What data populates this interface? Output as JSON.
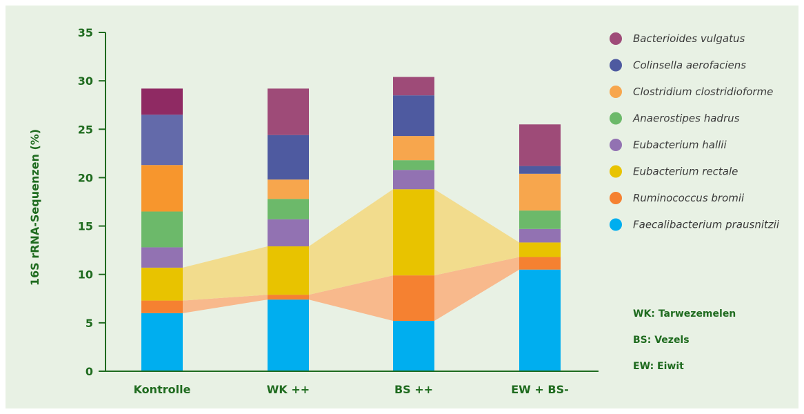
{
  "chart_data": {
    "type": "bar",
    "stacked": true,
    "ylabel": "16S rRNA-Sequenzen (%)",
    "xlabel": "",
    "ylim": [
      0,
      35
    ],
    "yticks": [
      0,
      5,
      10,
      15,
      20,
      25,
      30,
      35
    ],
    "grid": false,
    "legend_position": "right",
    "categories": [
      "Kontrolle",
      "WK ++",
      "BS ++",
      "EW + BS-"
    ],
    "series": [
      {
        "name": "Faecalibacterium prausnitzii",
        "color": "#00aeef",
        "values": [
          6.0,
          7.4,
          5.2,
          10.5
        ]
      },
      {
        "name": "Ruminococcus bromii",
        "color": "#f58131",
        "values": [
          1.3,
          0.5,
          4.7,
          1.3
        ]
      },
      {
        "name": "Eubacterium rectale",
        "color": "#e8c300",
        "values": [
          3.4,
          5.0,
          8.9,
          1.5
        ]
      },
      {
        "name": "Eubacterium hallii",
        "color": "#9272b2",
        "values": [
          2.1,
          2.8,
          2.0,
          1.4
        ]
      },
      {
        "name": "Anaerostipes hadrus",
        "color": "#6cb96a",
        "values": [
          3.7,
          2.1,
          1.0,
          1.9
        ]
      },
      {
        "name": "Clostridium clostridioforme",
        "color": "#f7a64d",
        "values": [
          4.8,
          2.0,
          2.5,
          3.8
        ]
      },
      {
        "name": "Colinsella aerofaciens",
        "color": "#4e5aa0",
        "values": [
          5.2,
          4.6,
          4.2,
          0.8
        ]
      },
      {
        "name": "Bacterioides vulgatus",
        "color": "#9e4b78",
        "values": [
          2.7,
          4.8,
          1.9,
          4.3
        ]
      }
    ],
    "series_colors_override": {
      "Kontrolle": {
        "Bacterioides vulgatus": "#8f2a63",
        "Colinsella aerofaciens": "#636aaa",
        "Clostridium clostridioforme": "#f7962d"
      }
    },
    "bands": [
      {
        "series": "Ruminococcus bromii",
        "color": "#f8b98c"
      },
      {
        "series": "Eubacterium rectale",
        "color": "#f2dc8d"
      }
    ],
    "legend_order": [
      "Bacterioides vulgatus",
      "Colinsella aerofaciens",
      "Clostridium clostridioforme",
      "Anaerostipes hadrus",
      "Eubacterium hallii",
      "Eubacterium rectale",
      "Ruminococcus bromii",
      "Faecalibacterium prausnitzii"
    ],
    "annotations": [
      "WK: Tarwezemelen",
      "BS: Vezels",
      "EW: Eiwit"
    ]
  },
  "colors": {
    "background": "#e8f1e4",
    "text": "#1f6b1f",
    "axis": "#1f6b1f"
  }
}
